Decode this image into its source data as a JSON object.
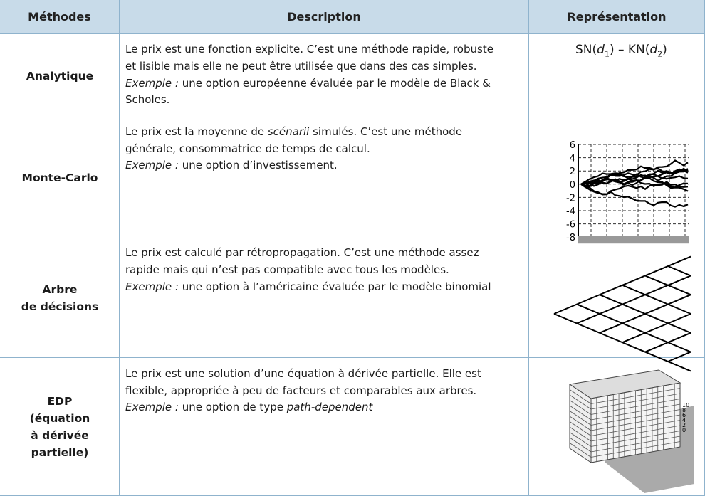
{
  "table": {
    "header": [
      "Méthodes",
      "Description",
      "Représentation"
    ],
    "rows": [
      {
        "method": [
          "Analytique"
        ],
        "description": [
          [
            "Le prix est une fonction explicite. C’est une méthode rapide, robuste"
          ],
          [
            "et lisible mais elle ne peut être utilisée que dans des cas simples."
          ],
          [
            {
              "i": "Exemple :"
            },
            " une option européenne évaluée par le modèle de Black &"
          ],
          [
            "Scholes."
          ]
        ],
        "formula": [
          "SN(",
          "d",
          "1",
          ") – KN(",
          "d",
          "2",
          ")"
        ]
      },
      {
        "method": [
          "Monte-Carlo"
        ],
        "description": [
          [
            "Le prix est la moyenne de ",
            {
              "i": "scénarii"
            },
            " simulés. C’est une méthode"
          ],
          [
            "générale, consommatrice de temps de calcul."
          ],
          [
            {
              "i": "Exemple :"
            },
            " une option d’investissement."
          ]
        ],
        "yticks": [
          6,
          4,
          2,
          0,
          -2,
          -4,
          -6,
          -8
        ]
      },
      {
        "method": [
          "Arbre",
          "de décisions"
        ],
        "description": [
          [
            "Le prix est calculé par rétropropagation. C’est une méthode assez"
          ],
          [
            "rapide mais qui n’est pas compatible avec tous les modèles."
          ],
          [
            {
              "i": "Exemple :"
            },
            " une option à l’américaine évaluée par le modèle binomial"
          ]
        ]
      },
      {
        "method": [
          "EDP",
          "(équation",
          "à dérivée",
          "partielle)"
        ],
        "description": [
          [
            "Le prix est une solution d’une équation à dérivée partielle. Elle est"
          ],
          [
            "flexible, appropriée à peu de facteurs et comparables aux arbres."
          ],
          [
            {
              "i": "Exemple :"
            },
            " une option de type ",
            {
              "i": "path-dependent"
            }
          ]
        ],
        "zticks": [
          10,
          8,
          6,
          4,
          2,
          0
        ]
      }
    ]
  }
}
